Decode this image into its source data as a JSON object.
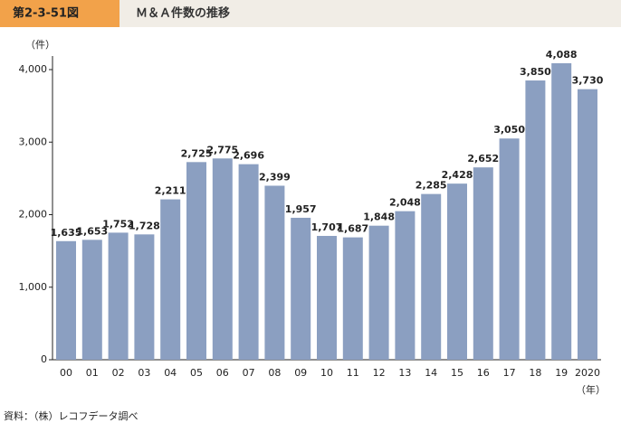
{
  "header": {
    "figure_number": "第2-3-51図",
    "title": "Ｍ＆Ａ件数の推移"
  },
  "chart_data": {
    "type": "bar",
    "y_unit": "（件）",
    "x_unit": "（年）",
    "source": "資料：（株）レコフデータ調べ",
    "categories": [
      "00",
      "01",
      "02",
      "03",
      "04",
      "05",
      "06",
      "07",
      "08",
      "09",
      "10",
      "11",
      "12",
      "13",
      "14",
      "15",
      "16",
      "17",
      "18",
      "19",
      "2020"
    ],
    "values": [
      1635,
      1653,
      1752,
      1728,
      2211,
      2725,
      2775,
      2696,
      2399,
      1957,
      1707,
      1687,
      1848,
      2048,
      2285,
      2428,
      2652,
      3050,
      3850,
      4088,
      3730
    ],
    "value_labels": [
      "1,635",
      "1,653",
      "1,752",
      "1,728",
      "2,211",
      "2,725",
      "2,775",
      "2,696",
      "2,399",
      "1,957",
      "1,707",
      "1,687",
      "1,848",
      "2,048",
      "2,285",
      "2,428",
      "2,652",
      "3,050",
      "3,850",
      "4,088",
      "3,730"
    ],
    "color": "#8b9fc1",
    "ylim": [
      0,
      4000
    ],
    "yticks": [
      0,
      {
        "value": 1000,
        "label": "1,000"
      },
      {
        "value": 2000,
        "label": "2,000"
      },
      {
        "value": 3000,
        "label": "3,000"
      },
      {
        "value": 4000,
        "label": "4,000"
      }
    ]
  }
}
